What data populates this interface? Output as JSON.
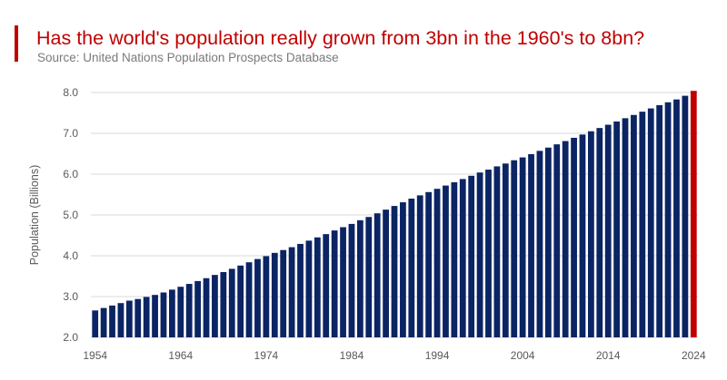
{
  "header": {
    "title": "Has the world's population really grown from 3bn in the 1960's to 8bn?",
    "subtitle": "Source: United Nations Population Prospects Database"
  },
  "colors": {
    "bar": "#0b2463",
    "highlight_bar": "#c00000",
    "accent": "#c00000",
    "grid": "#d9d9d9"
  },
  "chart_data": {
    "type": "bar",
    "title": "Has the world's population really grown from 3bn in the 1960's to 8bn?",
    "ylabel": "Population (Billions)",
    "xlabel": "",
    "ylim": [
      2.0,
      8.0
    ],
    "yticks": [
      "2.0",
      "3.0",
      "4.0",
      "5.0",
      "6.0",
      "7.0",
      "8.0"
    ],
    "xticks": [
      "1954",
      "1964",
      "1974",
      "1984",
      "1994",
      "2004",
      "2014",
      "2024"
    ],
    "grid": true,
    "highlight_category": "2024",
    "categories": [
      "1954",
      "1955",
      "1956",
      "1957",
      "1958",
      "1959",
      "1960",
      "1961",
      "1962",
      "1963",
      "1964",
      "1965",
      "1966",
      "1967",
      "1968",
      "1969",
      "1970",
      "1971",
      "1972",
      "1973",
      "1974",
      "1975",
      "1976",
      "1977",
      "1978",
      "1979",
      "1980",
      "1981",
      "1982",
      "1983",
      "1984",
      "1985",
      "1986",
      "1987",
      "1988",
      "1989",
      "1990",
      "1991",
      "1992",
      "1993",
      "1994",
      "1995",
      "1996",
      "1997",
      "1998",
      "1999",
      "2000",
      "2001",
      "2002",
      "2003",
      "2004",
      "2005",
      "2006",
      "2007",
      "2008",
      "2009",
      "2010",
      "2011",
      "2012",
      "2013",
      "2014",
      "2015",
      "2016",
      "2017",
      "2018",
      "2019",
      "2020",
      "2021",
      "2022",
      "2023",
      "2024"
    ],
    "values": [
      2.66,
      2.72,
      2.78,
      2.84,
      2.9,
      2.94,
      2.99,
      3.04,
      3.1,
      3.17,
      3.24,
      3.31,
      3.38,
      3.45,
      3.53,
      3.6,
      3.68,
      3.76,
      3.84,
      3.92,
      3.99,
      4.07,
      4.14,
      4.21,
      4.29,
      4.37,
      4.45,
      4.53,
      4.62,
      4.7,
      4.78,
      4.87,
      4.95,
      5.04,
      5.13,
      5.22,
      5.31,
      5.4,
      5.48,
      5.56,
      5.64,
      5.72,
      5.8,
      5.88,
      5.96,
      6.04,
      6.11,
      6.19,
      6.26,
      6.34,
      6.41,
      6.49,
      6.57,
      6.65,
      6.73,
      6.81,
      6.89,
      6.97,
      7.05,
      7.13,
      7.21,
      7.29,
      7.37,
      7.45,
      7.53,
      7.61,
      7.69,
      7.76,
      7.83,
      7.92,
      8.04
    ]
  }
}
